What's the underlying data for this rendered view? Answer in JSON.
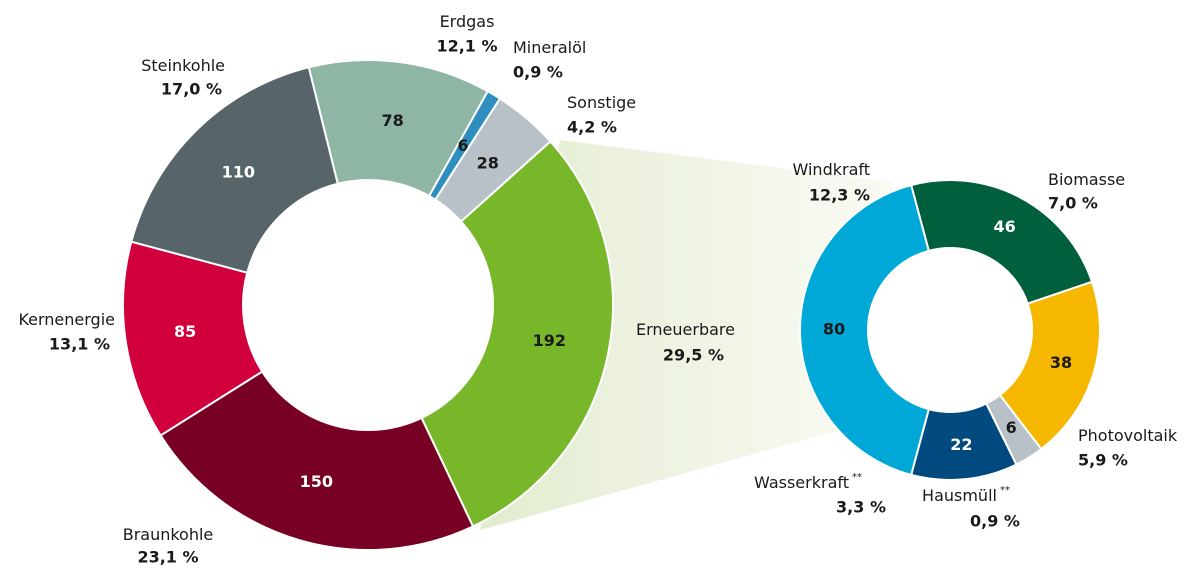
{
  "chart_data": [
    {
      "type": "donut",
      "categories": [
        "Erdgas",
        "Mineralöl",
        "Sonstige",
        "Erneuerbare",
        "Braunkohle",
        "Kernenergie",
        "Steinkohle"
      ],
      "values": [
        78,
        6,
        28,
        192,
        150,
        85,
        110
      ],
      "percent_labels": [
        "12,1 %",
        "0,9 %",
        "4,2 %",
        "29,5 %",
        "23,1 %",
        "13,1 %",
        "17,0 %"
      ],
      "colors": [
        "#8fb5a5",
        "#2e8fbf",
        "#b9c1c8",
        "#78b62a",
        "#780025",
        "#d1003d",
        "#57656b"
      ]
    },
    {
      "type": "donut",
      "categories": [
        "Biomasse",
        "Photovoltaik",
        "Hausmüll",
        "Wasserkraft",
        "Windkraft"
      ],
      "notes": [
        null,
        null,
        "**",
        "**",
        null
      ],
      "values": [
        46,
        38,
        6,
        22,
        80
      ],
      "percent_labels": [
        "7,0 %",
        "5,9 %",
        "0,9 %",
        "3,3 %",
        "12,3 %"
      ],
      "colors": [
        "#005f3c",
        "#f5b700",
        "#b9c1c8",
        "#004a7f",
        "#00a8d8"
      ]
    }
  ]
}
